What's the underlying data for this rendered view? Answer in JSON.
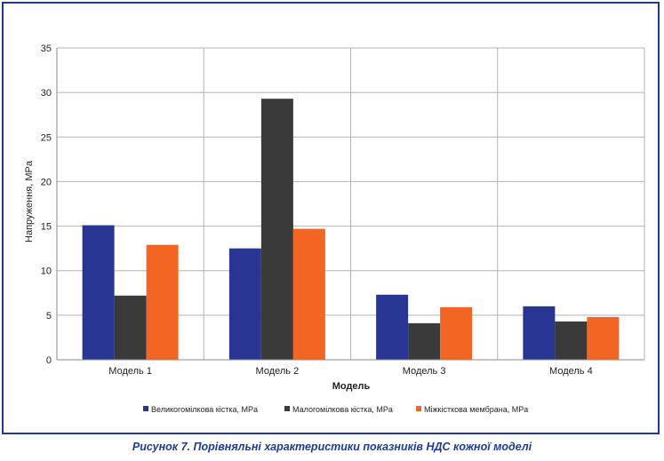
{
  "caption": "Рисунок 7. Порівняльні характеристики показників НДС кожної моделі",
  "chart_data": {
    "type": "bar",
    "categories": [
      "Модель 1",
      "Модель 2",
      "Модель 3",
      "Модель 4"
    ],
    "series": [
      {
        "name": "Великогомілкова кістка, MPa",
        "color": "#283593",
        "values": [
          15.1,
          12.5,
          7.3,
          6.0
        ]
      },
      {
        "name": "Малогомілкова кістка, MPa",
        "color": "#3a3a3a",
        "values": [
          7.2,
          29.3,
          4.1,
          4.3
        ]
      },
      {
        "name": "Міжкісткова мембрана, MPa",
        "color": "#f26522",
        "values": [
          12.9,
          14.7,
          5.9,
          4.8
        ]
      }
    ],
    "xlabel": "Модель",
    "ylabel": "Напруження, MPa",
    "ylim": [
      0,
      35
    ],
    "yticks": [
      0,
      5,
      10,
      15,
      20,
      25,
      30,
      35
    ],
    "grid": true,
    "legend_position": "bottom"
  }
}
